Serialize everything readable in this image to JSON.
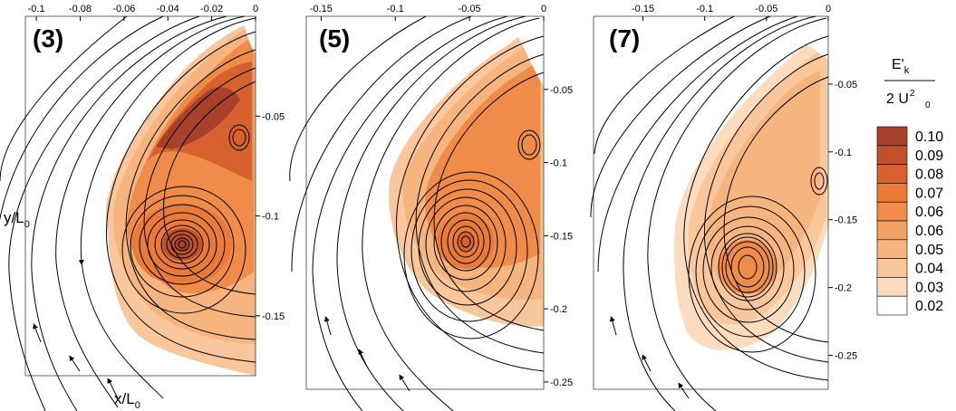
{
  "panels": [
    {
      "label": "(3)",
      "x_ticks": [
        "-0.1",
        "-0.08",
        "-0.06",
        "-0.04",
        "-0.02",
        "0"
      ],
      "y_ticks": [
        "-0.05",
        "-0.1",
        "-0.15"
      ],
      "xlim": [
        -0.105,
        0.0
      ],
      "ylim": [
        -0.18,
        0.0
      ]
    },
    {
      "label": "(5)",
      "x_ticks": [
        "-0.15",
        "-0.1",
        "-0.05",
        "0"
      ],
      "y_ticks": [
        "-0.05",
        "-0.1",
        "-0.15",
        "-0.2",
        "-0.25"
      ],
      "xlim": [
        -0.16,
        0.0
      ],
      "ylim": [
        -0.255,
        0.0
      ]
    },
    {
      "label": "(7)",
      "x_ticks": [
        "-0.15",
        "-0.1",
        "-0.05",
        "0"
      ],
      "y_ticks": [
        "-0.05",
        "-0.1",
        "-0.15",
        "-0.2",
        "-0.25"
      ],
      "xlim": [
        -0.19,
        0.0
      ],
      "ylim": [
        -0.275,
        0.0
      ]
    }
  ],
  "ylabel": {
    "main": "y/L",
    "sub": "0"
  },
  "xlabel": {
    "main": "x/L",
    "sub": "0"
  },
  "colorbar": {
    "title": {
      "numerator": "E'",
      "num_sub": "k",
      "denominator": "2 U",
      "den_sub": "0",
      "den_sup": "2"
    },
    "levels": [
      "0.10",
      "0.09",
      "0.08",
      "0.07",
      "0.06",
      "0.06",
      "0.05",
      "0.04",
      "0.03",
      "0.02"
    ],
    "colors": [
      "#a8412b",
      "#c2502a",
      "#d8622f",
      "#e97a3a",
      "#ef8c4a",
      "#f3a064",
      "#f6b47e",
      "#f9c79b",
      "#fcdcbf",
      "#ffffff"
    ]
  }
}
